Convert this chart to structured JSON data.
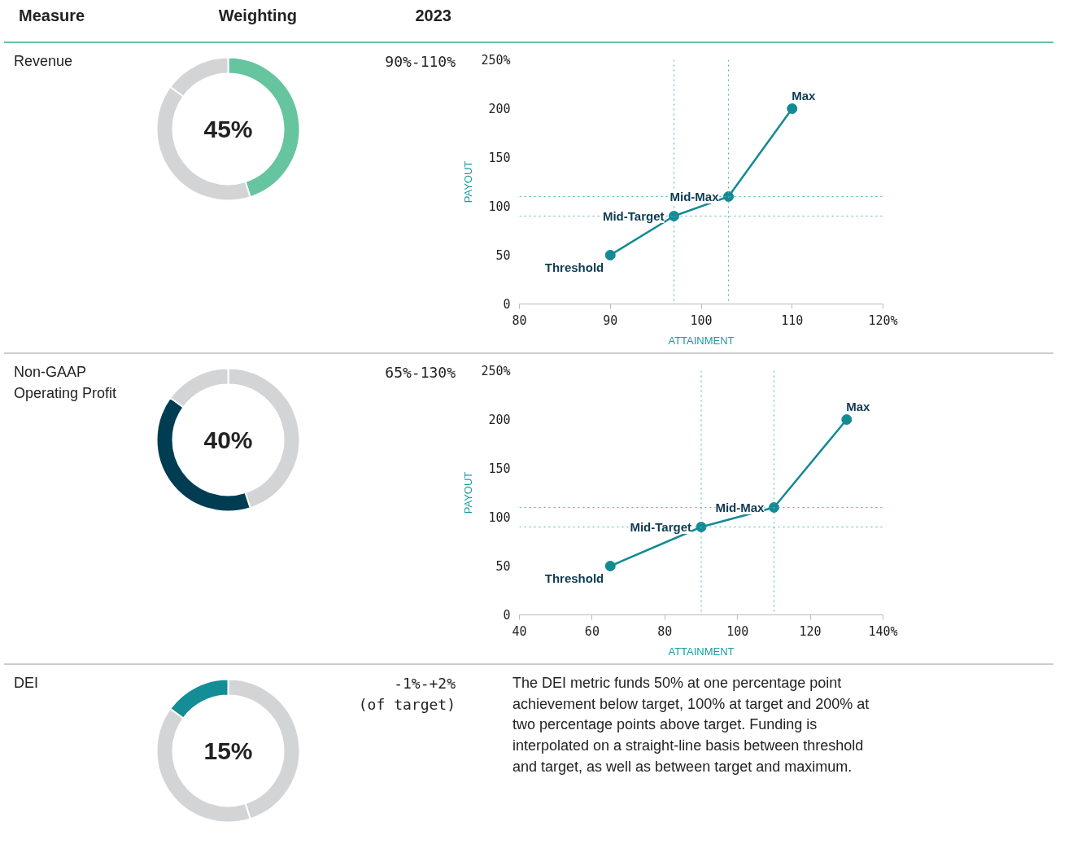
{
  "chart_data": [
    {
      "type": "other",
      "annotations": [
        "Measure",
        "Weighting",
        "2023"
      ]
    },
    {
      "type": "donut",
      "title": "Revenue",
      "categories": [
        null,
        null,
        null
      ],
      "values": [
        45,
        40,
        15
      ],
      "colors": [
        "#66c49e",
        "#d3d4d6",
        "#d3d4d6"
      ],
      "annotations": [
        "45%",
        "90%-110%"
      ]
    },
    {
      "type": "line",
      "x": [
        90,
        97,
        103,
        110
      ],
      "values": [
        50,
        90,
        110,
        200
      ],
      "color": "#138a94",
      "marker": "circle",
      "xlim": [
        80,
        120
      ],
      "ylim": [
        0,
        250
      ],
      "xticks": [
        80,
        90,
        100,
        110,
        {
          "value": 120,
          "label": "120%"
        }
      ],
      "yticks": [
        0,
        50,
        100,
        150,
        200,
        {
          "value": 250,
          "label": "250%"
        }
      ],
      "xlabel": "ATTAINMENT",
      "ylabel": "PAYOUT",
      "grid": false,
      "ref_lines": [
        {
          "axis": "y",
          "value": 90,
          "line_style": "dotted"
        },
        {
          "axis": "y",
          "value": 110,
          "line_style": "dotted"
        },
        {
          "axis": "x",
          "value": 97,
          "line_style": "dotted"
        },
        {
          "axis": "x",
          "value": 103,
          "line_style": "dotted"
        }
      ],
      "annotations": [
        {
          "text": "Threshold",
          "x": 90,
          "y": 50
        },
        {
          "text": "Mid-Target",
          "x": 97,
          "y": 90
        },
        {
          "text": "Mid-Max",
          "x": 103,
          "y": 110
        },
        {
          "text": "Max",
          "x": 110,
          "y": 200
        }
      ]
    },
    {
      "type": "donut",
      "title": "Non-GAAP Operating Profit",
      "categories": [
        null,
        null,
        null
      ],
      "values": [
        45,
        40,
        15
      ],
      "colors": [
        "#d3d4d6",
        "#003d52",
        "#d3d4d6"
      ],
      "annotations": [
        "40%",
        "65%-130%"
      ]
    },
    {
      "type": "line",
      "x": [
        65,
        90,
        110,
        130
      ],
      "values": [
        50,
        90,
        110,
        200
      ],
      "color": "#138a94",
      "marker": "circle",
      "xlim": [
        40,
        140
      ],
      "ylim": [
        0,
        250
      ],
      "xticks": [
        40,
        60,
        80,
        100,
        120,
        {
          "value": 140,
          "label": "140%"
        }
      ],
      "yticks": [
        0,
        50,
        100,
        150,
        200,
        {
          "value": 250,
          "label": "250%"
        }
      ],
      "xlabel": "ATTAINMENT",
      "ylabel": "PAYOUT",
      "grid": false,
      "ref_lines": [
        {
          "axis": "y",
          "value": 90,
          "line_style": "dotted"
        },
        {
          "axis": "y",
          "value": 110,
          "line_style": "dotted"
        },
        {
          "axis": "x",
          "value": 90,
          "line_style": "dotted"
        },
        {
          "axis": "x",
          "value": 110,
          "line_style": "dotted"
        }
      ],
      "annotations": [
        {
          "text": "Threshold",
          "x": 65,
          "y": 50
        },
        {
          "text": "Mid-Target",
          "x": 90,
          "y": 90
        },
        {
          "text": "Mid-Max",
          "x": 110,
          "y": 110
        },
        {
          "text": "Max",
          "x": 130,
          "y": 200
        }
      ]
    },
    {
      "type": "donut",
      "title": "DEI",
      "categories": [
        null,
        null,
        null
      ],
      "values": [
        45,
        40,
        15
      ],
      "colors": [
        "#d3d4d6",
        "#d3d4d6",
        "#138d96"
      ],
      "annotations": [
        "15%",
        "-1%-+2%\n(of target)"
      ]
    },
    {
      "type": "other",
      "annotations": [
        "The DEI metric funds 50% at one percentage point achievement below target, 100% at target and 200% at two percentage points above target. Funding is interpolated on a straight-line basis between threshold and target, as well as between target and maximum."
      ]
    }
  ]
}
